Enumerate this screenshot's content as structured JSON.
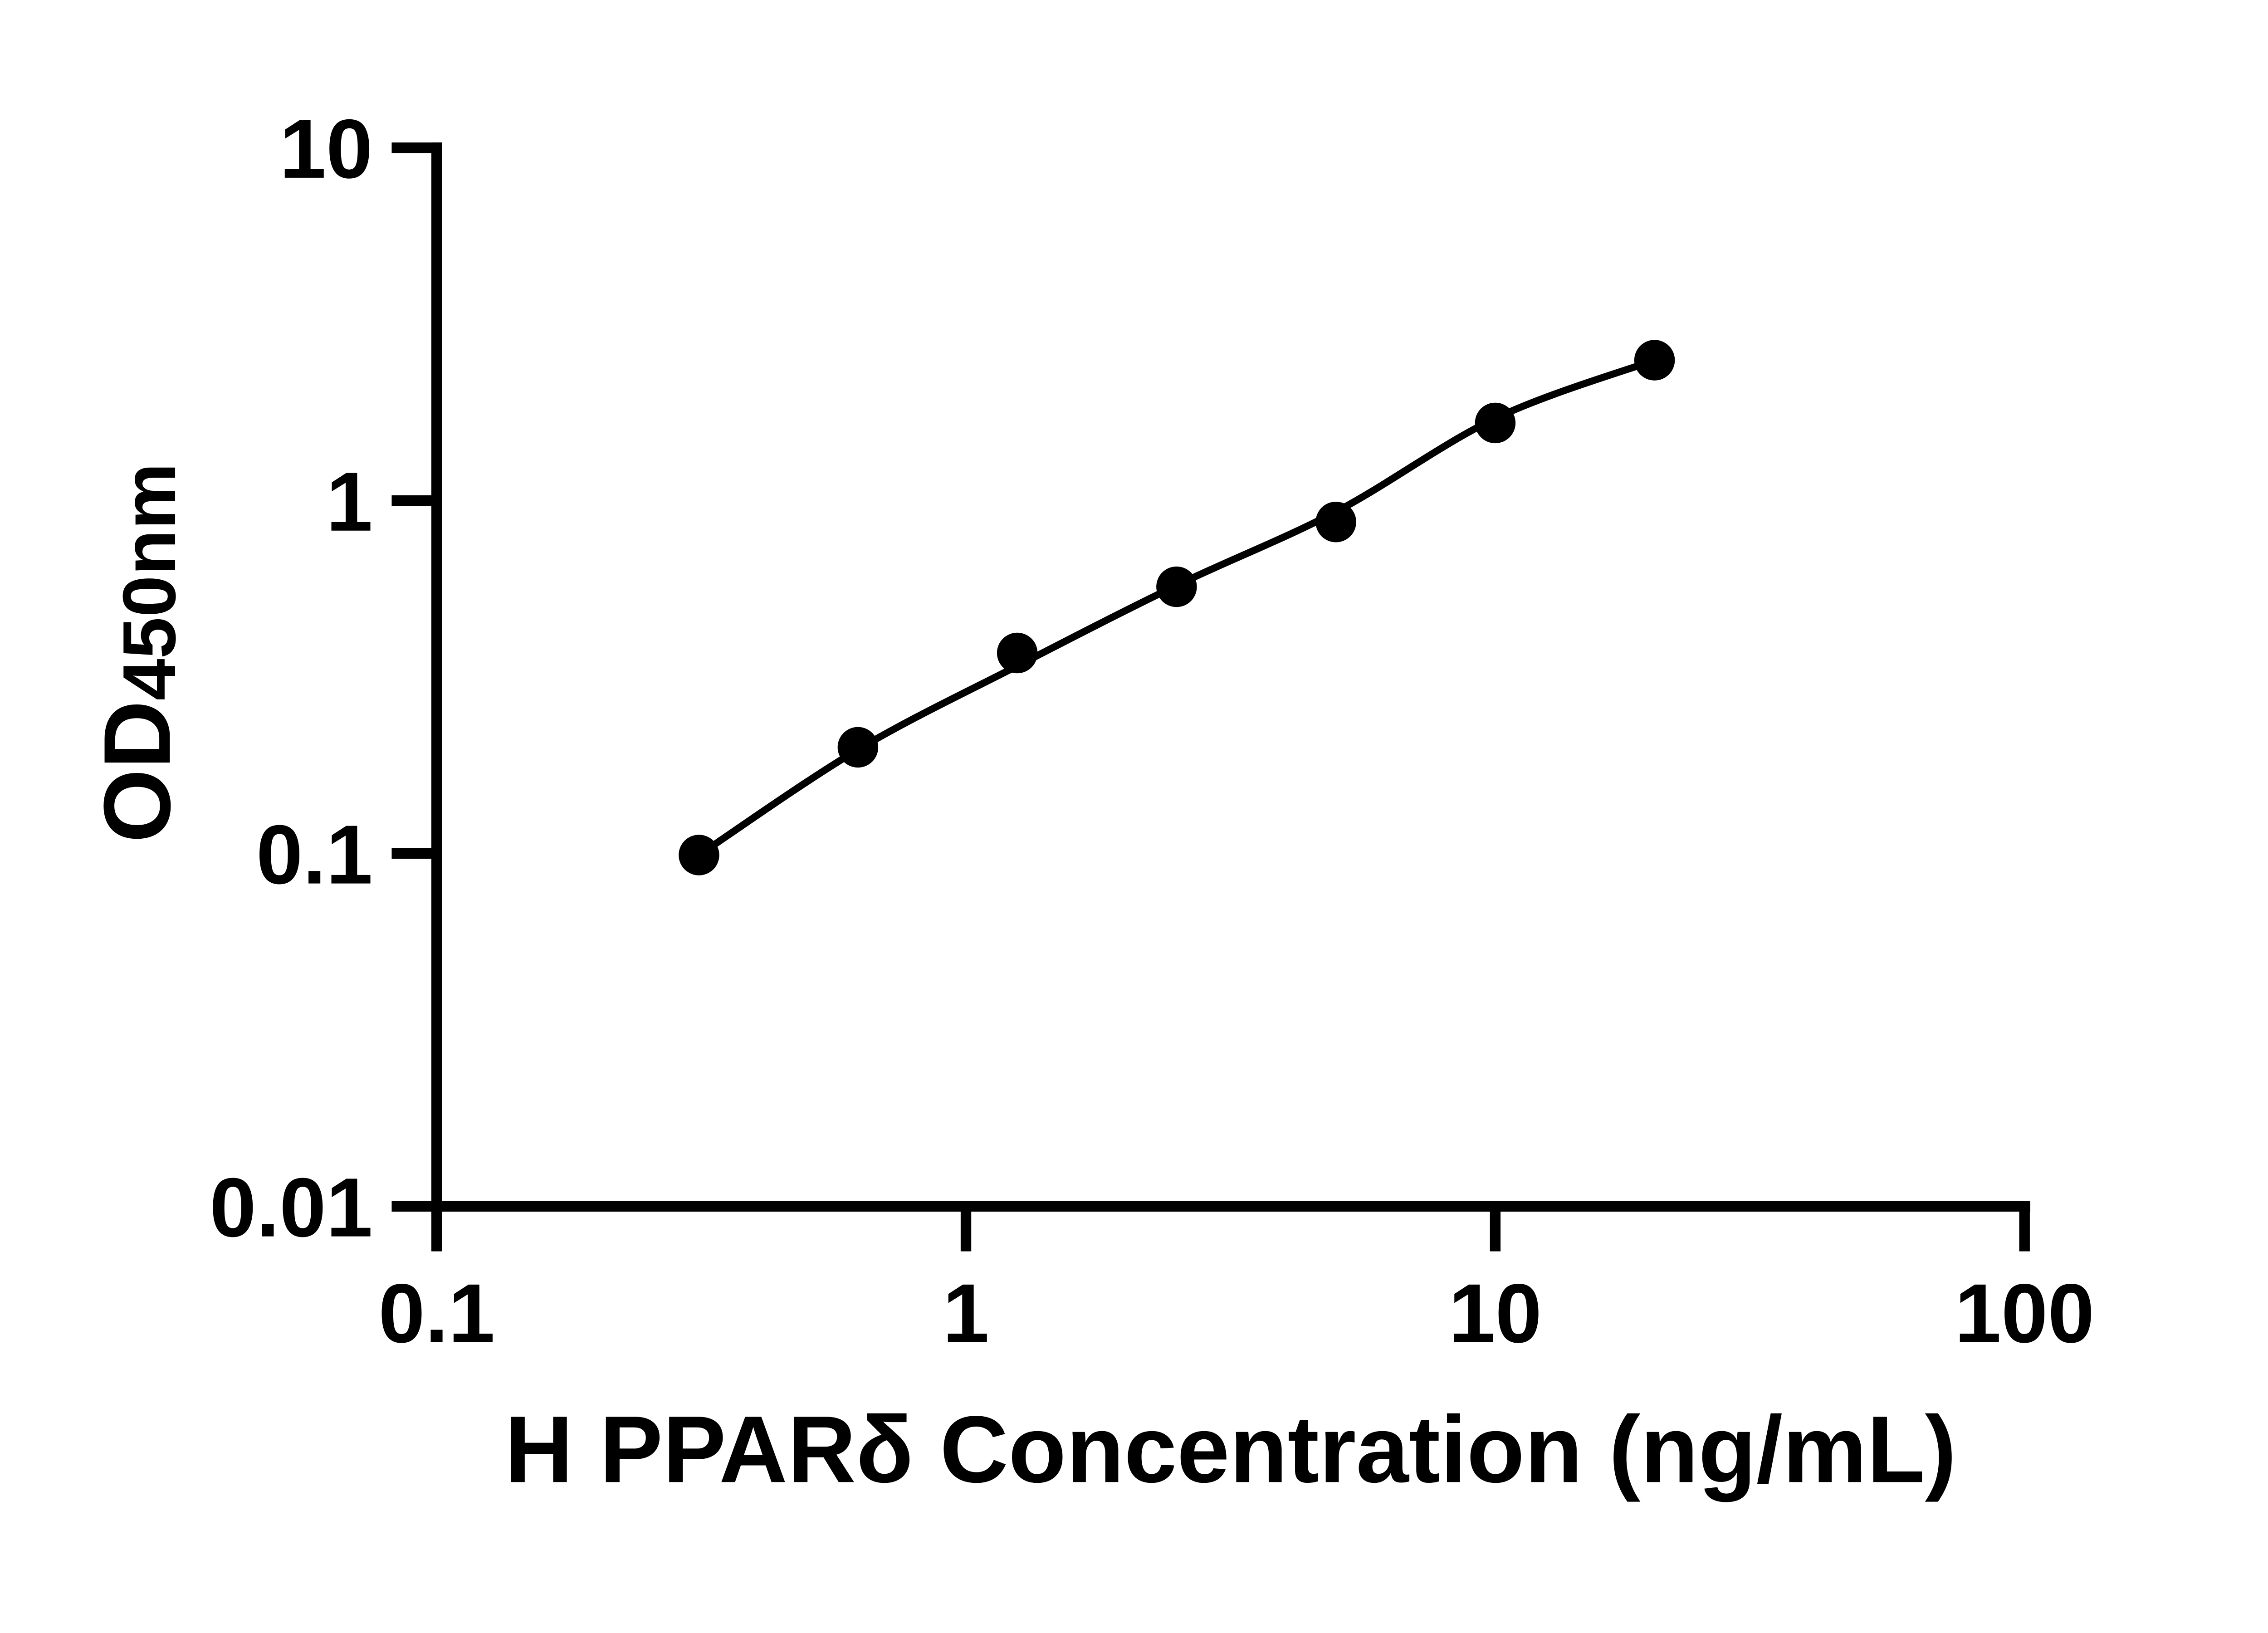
{
  "styles": {
    "ink": "#000000",
    "background": "#ffffff"
  },
  "chart_data": {
    "type": "scatter",
    "title": "",
    "xlabel": "H PPARδ Concentration (ng/mL)",
    "ylabel_main": "OD",
    "ylabel_sub": "450nm",
    "legend": null,
    "grid": false,
    "x_axis": {
      "scale": "log",
      "min": 0.1,
      "max": 100,
      "ticks": [
        {
          "value": 0.1,
          "label": "0.1"
        },
        {
          "value": 1,
          "label": "1"
        },
        {
          "value": 10,
          "label": "10"
        },
        {
          "value": 100,
          "label": "100"
        }
      ]
    },
    "y_axis": {
      "scale": "log",
      "min": 0.01,
      "max": 10,
      "ticks": [
        {
          "value": 10,
          "label": "10"
        },
        {
          "value": 1,
          "label": "1"
        },
        {
          "value": 0.1,
          "label": "0.1"
        },
        {
          "value": 0.01,
          "label": "0.01"
        }
      ]
    },
    "series": [
      {
        "name": "standard-curve-points",
        "marker": "filled-circle",
        "color": "#000000",
        "points": [
          {
            "x": 0.313,
            "y": 0.099
          },
          {
            "x": 0.625,
            "y": 0.2
          },
          {
            "x": 1.25,
            "y": 0.37
          },
          {
            "x": 2.5,
            "y": 0.57
          },
          {
            "x": 5,
            "y": 0.87
          },
          {
            "x": 10,
            "y": 1.66
          },
          {
            "x": 20,
            "y": 2.5
          }
        ]
      }
    ],
    "fit_curve_anchors": [
      {
        "x": 0.313,
        "y": 0.099
      },
      {
        "x": 0.625,
        "y": 0.197
      },
      {
        "x": 1.25,
        "y": 0.34
      },
      {
        "x": 2.5,
        "y": 0.575
      },
      {
        "x": 5,
        "y": 0.93
      },
      {
        "x": 10,
        "y": 1.71
      },
      {
        "x": 20,
        "y": 2.5
      }
    ]
  }
}
